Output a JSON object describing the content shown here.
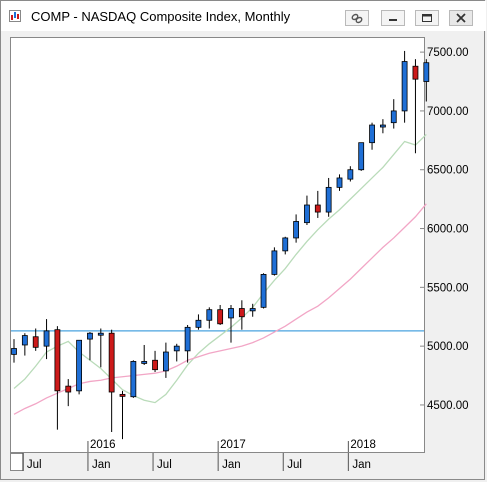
{
  "window": {
    "title": "COMP - NASDAQ Composite Index, Monthly",
    "buttons": [
      "link",
      "minimize",
      "maximize",
      "close"
    ]
  },
  "chart_data": {
    "type": "candlestick",
    "title": "COMP - NASDAQ Composite Index, Monthly",
    "ylim": [
      4100,
      7620
    ],
    "y_ticks": [
      4500,
      5000,
      5500,
      6000,
      6500,
      7000,
      7500
    ],
    "y_tick_labels": [
      "4500.00",
      "5000.00",
      "5500.00",
      "6000.00",
      "6500.00",
      "7000.00",
      "7500.00"
    ],
    "x_tick_labels": [
      {
        "index": 1,
        "label": "Jul"
      },
      {
        "index": 7,
        "label": "Jan"
      },
      {
        "index": 13,
        "label": "Jul"
      },
      {
        "index": 19,
        "label": "Jan"
      },
      {
        "index": 25,
        "label": "Jul"
      },
      {
        "index": 31,
        "label": "Jan"
      }
    ],
    "year_labels": [
      {
        "index": 7,
        "label": "2016"
      },
      {
        "index": 19,
        "label": "2017"
      },
      {
        "index": 31,
        "label": "2018"
      }
    ],
    "horizontal_line": {
      "value": 5130,
      "color": "#4aa3df"
    },
    "candles": [
      {
        "o": 4930,
        "h": 5060,
        "l": 4860,
        "c": 4980
      },
      {
        "o": 5010,
        "h": 5110,
        "l": 4920,
        "c": 5090
      },
      {
        "o": 5080,
        "h": 5150,
        "l": 4960,
        "c": 4990
      },
      {
        "o": 5000,
        "h": 5230,
        "l": 4890,
        "c": 5130
      },
      {
        "o": 5140,
        "h": 5170,
        "l": 4290,
        "c": 4620
      },
      {
        "o": 4660,
        "h": 4720,
        "l": 4490,
        "c": 4610
      },
      {
        "o": 4620,
        "h": 5050,
        "l": 4590,
        "c": 5050
      },
      {
        "o": 5060,
        "h": 5120,
        "l": 4880,
        "c": 5110
      },
      {
        "o": 5100,
        "h": 5150,
        "l": 4820,
        "c": 5110
      },
      {
        "o": 5110,
        "h": 5140,
        "l": 4270,
        "c": 4610
      },
      {
        "o": 4590,
        "h": 4620,
        "l": 4210,
        "c": 4580
      },
      {
        "o": 4570,
        "h": 4880,
        "l": 4560,
        "c": 4870
      },
      {
        "o": 4870,
        "h": 5010,
        "l": 4840,
        "c": 4870
      },
      {
        "o": 4880,
        "h": 4960,
        "l": 4780,
        "c": 4800
      },
      {
        "o": 4790,
        "h": 5030,
        "l": 4730,
        "c": 4950
      },
      {
        "o": 4960,
        "h": 5020,
        "l": 4870,
        "c": 5000
      },
      {
        "o": 4960,
        "h": 5180,
        "l": 4860,
        "c": 5160
      },
      {
        "o": 5160,
        "h": 5270,
        "l": 5140,
        "c": 5220
      },
      {
        "o": 5220,
        "h": 5330,
        "l": 5150,
        "c": 5310
      },
      {
        "o": 5310,
        "h": 5350,
        "l": 5180,
        "c": 5190
      },
      {
        "o": 5240,
        "h": 5350,
        "l": 5030,
        "c": 5320
      },
      {
        "o": 5320,
        "h": 5390,
        "l": 5140,
        "c": 5250
      },
      {
        "o": 5300,
        "h": 5360,
        "l": 5250,
        "c": 5320
      },
      {
        "o": 5330,
        "h": 5620,
        "l": 5320,
        "c": 5610
      },
      {
        "o": 5610,
        "h": 5840,
        "l": 5600,
        "c": 5810
      },
      {
        "o": 5810,
        "h": 5930,
        "l": 5780,
        "c": 5920
      },
      {
        "o": 5920,
        "h": 6120,
        "l": 5880,
        "c": 6060
      },
      {
        "o": 6050,
        "h": 6280,
        "l": 6030,
        "c": 6200
      },
      {
        "o": 6200,
        "h": 6320,
        "l": 6090,
        "c": 6140
      },
      {
        "o": 6140,
        "h": 6430,
        "l": 6100,
        "c": 6350
      },
      {
        "o": 6350,
        "h": 6460,
        "l": 6320,
        "c": 6430
      },
      {
        "o": 6420,
        "h": 6530,
        "l": 6400,
        "c": 6500
      },
      {
        "o": 6500,
        "h": 6730,
        "l": 6490,
        "c": 6730
      },
      {
        "o": 6730,
        "h": 6900,
        "l": 6670,
        "c": 6880
      },
      {
        "o": 6880,
        "h": 6930,
        "l": 6810,
        "c": 6880
      },
      {
        "o": 6900,
        "h": 7100,
        "l": 6850,
        "c": 7000
      },
      {
        "o": 7000,
        "h": 7510,
        "l": 6900,
        "c": 7420
      },
      {
        "o": 7380,
        "h": 7440,
        "l": 6640,
        "c": 7270
      },
      {
        "o": 7250,
        "h": 7440,
        "l": 7080,
        "c": 7410
      }
    ],
    "up_color": "#1f6fd6",
    "down_color": "#cc1a1a",
    "moving_averages": [
      {
        "color": "#b9dbb9",
        "values": [
          4640,
          4720,
          4830,
          4950,
          5000,
          5040,
          4950,
          4880,
          4810,
          4720,
          4630,
          4580,
          4540,
          4520,
          4590,
          4710,
          4840,
          4940,
          5020,
          5090,
          5160,
          5240,
          5330,
          5450,
          5560,
          5660,
          5780,
          5890,
          5990,
          6080,
          6160,
          6250,
          6340,
          6430,
          6520,
          6630,
          6740,
          6710,
          6800
        ]
      },
      {
        "color": "#f2a6c6",
        "values": [
          4420,
          4470,
          4510,
          4560,
          4600,
          4640,
          4680,
          4700,
          4710,
          4730,
          4740,
          4750,
          4760,
          4770,
          4790,
          4830,
          4880,
          4910,
          4940,
          4960,
          4980,
          5000,
          5030,
          5070,
          5120,
          5170,
          5230,
          5290,
          5340,
          5410,
          5490,
          5570,
          5660,
          5750,
          5840,
          5920,
          6010,
          6100,
          6210
        ]
      }
    ]
  }
}
